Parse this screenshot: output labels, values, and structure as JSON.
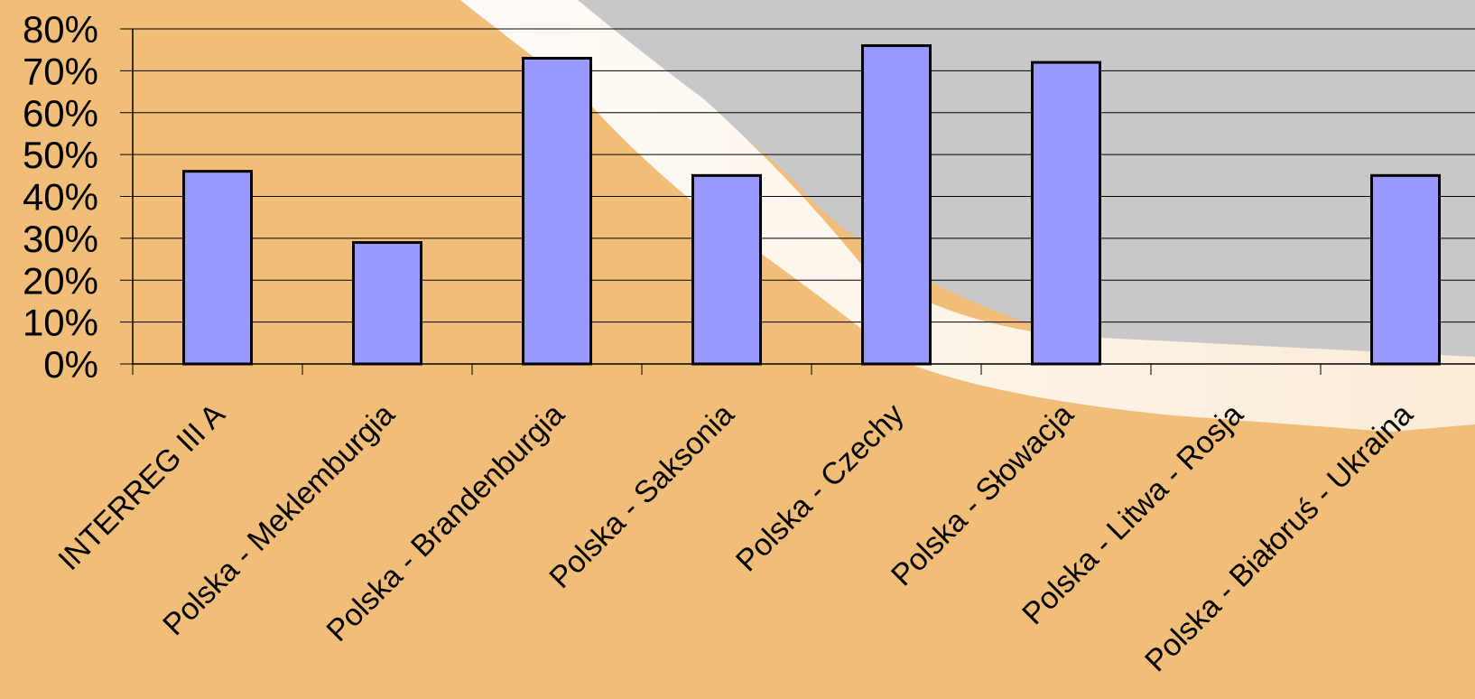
{
  "chart_data": {
    "type": "bar",
    "title": "",
    "xlabel": "",
    "ylabel": "",
    "ylim": [
      0,
      80
    ],
    "grid": true,
    "y_ticks": [
      {
        "value": 0,
        "label": "0%"
      },
      {
        "value": 10,
        "label": "10%"
      },
      {
        "value": 20,
        "label": "20%"
      },
      {
        "value": 30,
        "label": "30%"
      },
      {
        "value": 40,
        "label": "40%"
      },
      {
        "value": 50,
        "label": "50%"
      },
      {
        "value": 60,
        "label": "60%"
      },
      {
        "value": 70,
        "label": "70%"
      },
      {
        "value": 80,
        "label": "80%"
      }
    ],
    "categories": [
      "INTERREG III A",
      "Polska - Meklemburgia",
      "Polska - Brandenburgia",
      "Polska - Saksonia",
      "Polska - Czechy",
      "Polska - Słowacja",
      "Polska - Litwa - Rosja",
      "Polska - Białoruś - Ukraina"
    ],
    "values": [
      46,
      29,
      73,
      45,
      76,
      72,
      null,
      45
    ],
    "colors": {
      "bar_fill": "#9999FF",
      "bar_stroke": "#000000",
      "background": "#F0BE78",
      "band_light": "#FFFFFF",
      "band_gray": "#C8C8CA",
      "gridline": "#000000"
    }
  }
}
